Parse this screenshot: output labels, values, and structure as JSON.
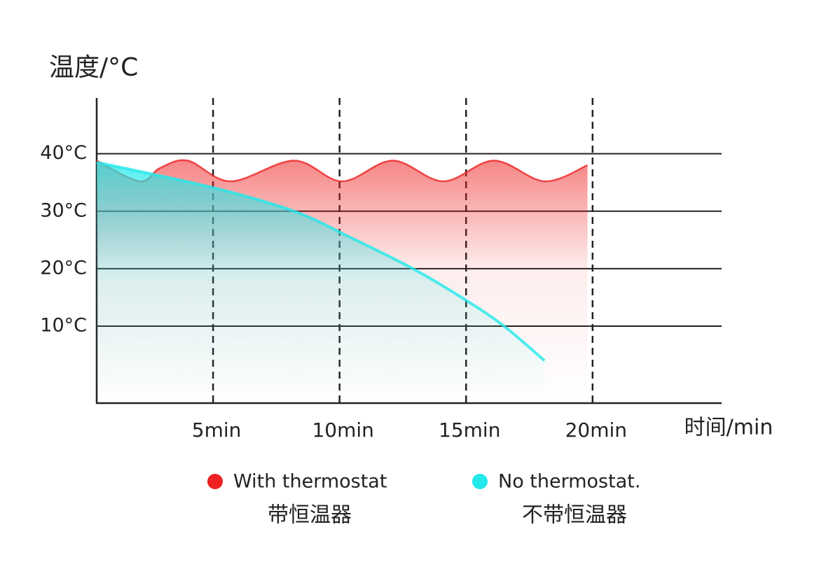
{
  "chart_data": {
    "type": "line",
    "y_label": "温度/°C",
    "x_label": "时间/min",
    "xlim": [
      0.4,
      25.1
    ],
    "ylim": [
      -3.4,
      49.7
    ],
    "xticks": [
      {
        "value": 5,
        "label": "5min"
      },
      {
        "value": 10,
        "label": "10min"
      },
      {
        "value": 15,
        "label": "15min"
      },
      {
        "value": 20,
        "label": "20min"
      }
    ],
    "yticks": [
      {
        "value": 10,
        "label": "10°C"
      },
      {
        "value": 20,
        "label": "20°C"
      },
      {
        "value": 30,
        "label": "30°C"
      },
      {
        "value": 40,
        "label": "40°C"
      }
    ],
    "series": [
      {
        "name": "With thermostat",
        "name_zh": "带恒温器",
        "color": "#ee2222",
        "x": [
          0.4,
          2.1,
          2.9,
          4.0,
          5.7,
          8.2,
          10.1,
          12.1,
          14.1,
          16.1,
          18.1,
          19.8
        ],
        "values": [
          38.8,
          35.2,
          37.5,
          38.8,
          35.2,
          38.8,
          35.2,
          38.8,
          35.2,
          38.8,
          35.2,
          38.0
        ]
      },
      {
        "name": "No thermostat.",
        "name_zh": "不带恒温器",
        "color": "#22e8ea",
        "x": [
          0.4,
          5.0,
          8.2,
          10.4,
          12.9,
          15.0,
          16.5,
          18.1
        ],
        "values": [
          38.5,
          34.1,
          30.0,
          25.5,
          20.0,
          14.5,
          10.0,
          4.0
        ]
      }
    ]
  }
}
